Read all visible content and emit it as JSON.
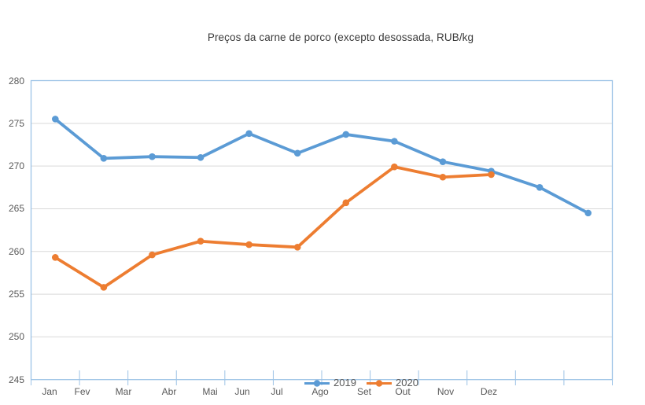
{
  "title": "Preços da carne de porco (excepto desossada, RUB/kg",
  "colors": {
    "axis_border": "#9DC3E6",
    "gridline": "#D9D9D9",
    "axis_label_text": "#595959",
    "title_text": "#3B3B3B",
    "series_2019": "#5B9BD5",
    "series_2020": "#ED7D31",
    "background": "#FFFFFF"
  },
  "chart_data": {
    "type": "line",
    "title": "Preços da carne de porco (excepto desossada, RUB/kg",
    "xlabel": "",
    "ylabel": "",
    "categories": [
      "Jan",
      "Fev",
      "Mar",
      "Abr",
      "Mai",
      "Jun",
      "Jul",
      "Ago",
      "Set",
      "Out",
      "Nov",
      "Dez"
    ],
    "series": [
      {
        "name": "2019",
        "color": "#5B9BD5",
        "values": [
          275.5,
          270.9,
          271.1,
          271.0,
          273.8,
          271.5,
          273.7,
          272.9,
          270.5,
          269.4,
          267.5,
          264.5
        ]
      },
      {
        "name": "2020",
        "color": "#ED7D31",
        "values": [
          259.3,
          255.8,
          259.6,
          261.2,
          260.8,
          260.5,
          265.7,
          269.9,
          268.7,
          269.0
        ]
      }
    ],
    "ylim": [
      245,
      280
    ],
    "yticks": [
      245,
      250,
      255,
      260,
      265,
      270,
      275,
      280
    ],
    "ytick_step": 5,
    "grid": true,
    "marker": "circle",
    "legend_position": "bottom-center",
    "legend_entries": [
      "2019",
      "2020"
    ]
  }
}
